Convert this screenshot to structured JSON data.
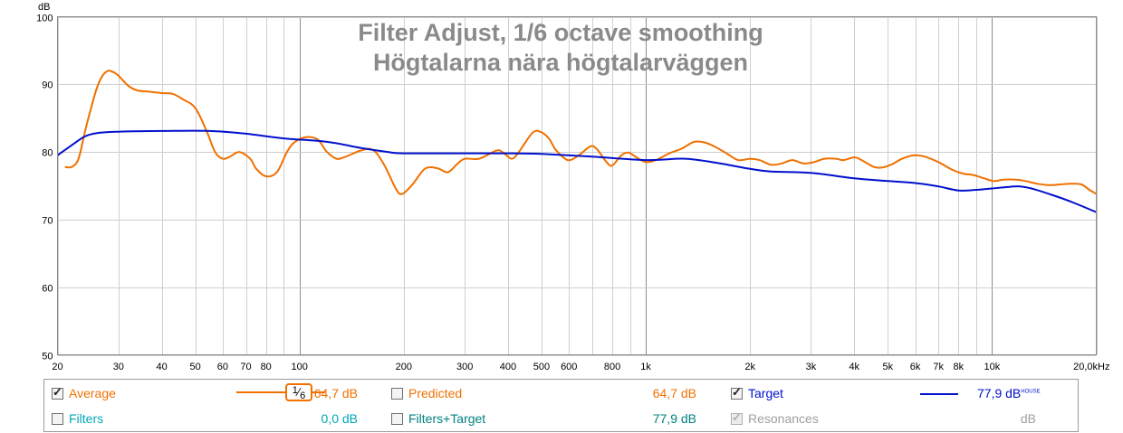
{
  "chart_data": {
    "type": "line",
    "title": "Filter Adjust, 1/6 octave smoothing",
    "subtitle": "Högtalarna nära högtalarväggen",
    "ylabel": "dB",
    "xscale": "log",
    "xlim": [
      20,
      20000
    ],
    "ylim": [
      50,
      100
    ],
    "yticks": [
      50,
      60,
      70,
      80,
      90,
      100
    ],
    "xticks": [
      {
        "v": 20,
        "label": "20"
      },
      {
        "v": 30,
        "label": "30"
      },
      {
        "v": 40,
        "label": "40"
      },
      {
        "v": 50,
        "label": "50"
      },
      {
        "v": 60,
        "label": "60"
      },
      {
        "v": 70,
        "label": "70"
      },
      {
        "v": 80,
        "label": "80"
      },
      {
        "v": 100,
        "label": "100"
      },
      {
        "v": 200,
        "label": "200"
      },
      {
        "v": 300,
        "label": "300"
      },
      {
        "v": 400,
        "label": "400"
      },
      {
        "v": 500,
        "label": "500"
      },
      {
        "v": 600,
        "label": "600"
      },
      {
        "v": 800,
        "label": "800"
      },
      {
        "v": 1000,
        "label": "1k"
      },
      {
        "v": 2000,
        "label": "2k"
      },
      {
        "v": 3000,
        "label": "3k"
      },
      {
        "v": 4000,
        "label": "4k"
      },
      {
        "v": 5000,
        "label": "5k"
      },
      {
        "v": 6000,
        "label": "6k"
      },
      {
        "v": 7000,
        "label": "7k"
      },
      {
        "v": 8000,
        "label": "8k"
      },
      {
        "v": 10000,
        "label": "10k"
      },
      {
        "v": 20000,
        "label": "20,0kHz"
      }
    ],
    "series": [
      {
        "name": "Average",
        "color": "#f07000",
        "points": [
          [
            21,
            77.8
          ],
          [
            22,
            77.8
          ],
          [
            23,
            79
          ],
          [
            24,
            83
          ],
          [
            25,
            86.5
          ],
          [
            26,
            89.5
          ],
          [
            27,
            91.3
          ],
          [
            28,
            92
          ],
          [
            29,
            91.8
          ],
          [
            30,
            91.3
          ],
          [
            32,
            89.8
          ],
          [
            34,
            89.1
          ],
          [
            37,
            88.9
          ],
          [
            40,
            88.7
          ],
          [
            43,
            88.6
          ],
          [
            46,
            87.8
          ],
          [
            50,
            86.5
          ],
          [
            54,
            83
          ],
          [
            57,
            80
          ],
          [
            60,
            79
          ],
          [
            63,
            79.3
          ],
          [
            67,
            80
          ],
          [
            72,
            79
          ],
          [
            75,
            77.5
          ],
          [
            80,
            76.4
          ],
          [
            86,
            77
          ],
          [
            92,
            80
          ],
          [
            97,
            81.5
          ],
          [
            105,
            82.2
          ],
          [
            113,
            81.8
          ],
          [
            120,
            80
          ],
          [
            128,
            79
          ],
          [
            136,
            79.3
          ],
          [
            150,
            80.2
          ],
          [
            163,
            80.3
          ],
          [
            176,
            78
          ],
          [
            190,
            74.5
          ],
          [
            198,
            73.8
          ],
          [
            212,
            75.2
          ],
          [
            230,
            77.5
          ],
          [
            250,
            77.6
          ],
          [
            268,
            77
          ],
          [
            285,
            78.2
          ],
          [
            300,
            79
          ],
          [
            330,
            79
          ],
          [
            370,
            80.2
          ],
          [
            385,
            80
          ],
          [
            410,
            79
          ],
          [
            430,
            80
          ],
          [
            470,
            82.8
          ],
          [
            495,
            83
          ],
          [
            525,
            82
          ],
          [
            550,
            80.3
          ],
          [
            595,
            78.8
          ],
          [
            640,
            79.5
          ],
          [
            690,
            80.8
          ],
          [
            720,
            80.5
          ],
          [
            770,
            78.5
          ],
          [
            800,
            78
          ],
          [
            850,
            79.5
          ],
          [
            890,
            79.9
          ],
          [
            940,
            79.2
          ],
          [
            1000,
            78.5
          ],
          [
            1070,
            78.8
          ],
          [
            1170,
            79.8
          ],
          [
            1270,
            80.5
          ],
          [
            1380,
            81.5
          ],
          [
            1480,
            81.4
          ],
          [
            1580,
            80.8
          ],
          [
            1710,
            79.8
          ],
          [
            1850,
            78.8
          ],
          [
            2000,
            79
          ],
          [
            2130,
            78.8
          ],
          [
            2300,
            78.1
          ],
          [
            2470,
            78.3
          ],
          [
            2650,
            78.8
          ],
          [
            2850,
            78.3
          ],
          [
            3060,
            78.5
          ],
          [
            3280,
            79
          ],
          [
            3540,
            79
          ],
          [
            3720,
            78.8
          ],
          [
            4000,
            79.2
          ],
          [
            4200,
            78.8
          ],
          [
            4550,
            77.8
          ],
          [
            4820,
            77.7
          ],
          [
            5150,
            78.2
          ],
          [
            5500,
            79
          ],
          [
            5950,
            79.5
          ],
          [
            6400,
            79.3
          ],
          [
            7000,
            78.5
          ],
          [
            7650,
            77.4
          ],
          [
            8230,
            76.8
          ],
          [
            8800,
            76.6
          ],
          [
            9500,
            76.1
          ],
          [
            10100,
            75.7
          ],
          [
            10800,
            75.9
          ],
          [
            11700,
            75.9
          ],
          [
            12500,
            75.7
          ],
          [
            13500,
            75.3
          ],
          [
            14600,
            75.1
          ],
          [
            15700,
            75.2
          ],
          [
            16900,
            75.3
          ],
          [
            18100,
            75.2
          ],
          [
            19100,
            74.4
          ],
          [
            20000,
            73.8
          ]
        ]
      },
      {
        "name": "Target",
        "color": "#0010cc",
        "points": [
          [
            20,
            79.5
          ],
          [
            22,
            81
          ],
          [
            24,
            82.3
          ],
          [
            26,
            82.8
          ],
          [
            30,
            83
          ],
          [
            40,
            83.1
          ],
          [
            55,
            83.1
          ],
          [
            70,
            82.7
          ],
          [
            90,
            82
          ],
          [
            120,
            81.5
          ],
          [
            150,
            80.6
          ],
          [
            180,
            80
          ],
          [
            200,
            79.8
          ],
          [
            300,
            79.8
          ],
          [
            400,
            79.8
          ],
          [
            500,
            79.7
          ],
          [
            700,
            79.3
          ],
          [
            1000,
            78.8
          ],
          [
            1300,
            79
          ],
          [
            1600,
            78.4
          ],
          [
            2000,
            77.5
          ],
          [
            2300,
            77.1
          ],
          [
            3000,
            76.9
          ],
          [
            4000,
            76.1
          ],
          [
            5000,
            75.7
          ],
          [
            6000,
            75.4
          ],
          [
            7000,
            74.9
          ],
          [
            8000,
            74.3
          ],
          [
            9000,
            74.4
          ],
          [
            10000,
            74.6
          ],
          [
            11000,
            74.8
          ],
          [
            12000,
            74.9
          ],
          [
            13000,
            74.6
          ],
          [
            15000,
            73.6
          ],
          [
            17000,
            72.6
          ],
          [
            20000,
            71.1
          ]
        ]
      }
    ]
  },
  "legend": {
    "average_label": "Average",
    "average_value": "64,7 dB",
    "smoothing_num": "1",
    "smoothing_den": "6",
    "predicted_label": "Predicted",
    "predicted_value": "64,7 dB",
    "target_label": "Target",
    "target_value": "77,9 dB",
    "target_sup": "HOUSE",
    "filters_label": "Filters",
    "filters_value": "0,0 dB",
    "filters_target_label": "Filters+Target",
    "filters_target_value": "77,9 dB",
    "resonances_label": "Resonances",
    "resonances_value": "dB"
  },
  "colors": {
    "average": "#f07000",
    "predicted": "#f07000",
    "target": "#0010cc",
    "filters": "#00a8b8",
    "filters_target": "#008080",
    "disabled": "#a0a0a0"
  }
}
